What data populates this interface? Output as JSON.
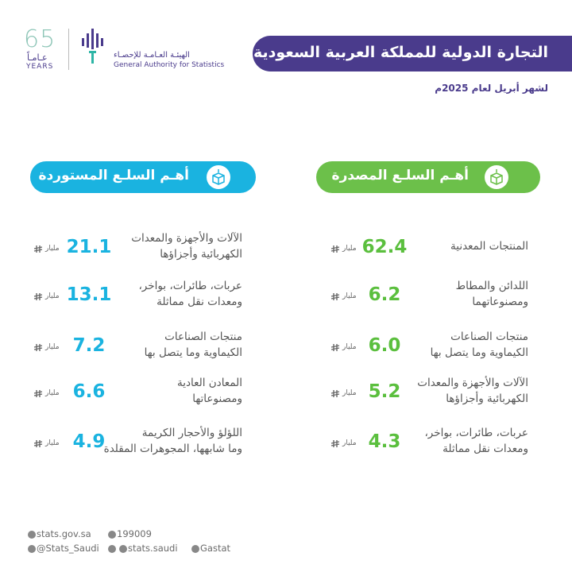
{
  "header": {
    "anniversary": {
      "number": 65,
      "arabic": "عـامـاً",
      "english": "YEARS"
    },
    "org_arabic": "الهيئـة العـامـة للإحصـاء",
    "org_english": "General Authority for Statistics",
    "title": "التجارة الدولية للمملكة العربية السعودية",
    "subtitle": "لشهر أبريل لعام 2025م"
  },
  "unit": "مليار",
  "exports": {
    "heading": "أهـم السلـع المصدرة",
    "items": [
      {
        "name": "المنتجات المعدنية",
        "value": 62.4
      },
      {
        "name": "اللدائن والمطاط\nومصنوعاتهما",
        "value": 6.2
      },
      {
        "name": "منتجات الصناعات\nالكيماوية وما يتصل بها",
        "value": {
          "value": 6,
          "label": "6.0"
        }
      },
      {
        "name": "الآلات والأجهزة والمعدات\nالكهربائية وأجزاؤها",
        "value": 5.2
      },
      {
        "name": "عربات، طائرات، بواخر،\nومعدات نقل مماثلة",
        "value": 4.3
      }
    ]
  },
  "imports": {
    "heading": "أهـم السلـع المستوردة",
    "items": [
      {
        "name": "الآلات والأجهزة والمعدات\nالكهربائية وأجزاؤها",
        "value": 21.1
      },
      {
        "name": "عربات، طائرات، بواخر،\nومعدات نقل مماثلة",
        "value": 13.1
      },
      {
        "name": "منتجات الصناعات\nالكيماوية وما يتصل بها",
        "value": 7.2
      },
      {
        "name": "المعادن العادية\nومصنوعاتها",
        "value": 6.6
      },
      {
        "name": "اللؤلؤ والأحجار الكريمة\nوما شابهها، المجوهرات المقلدة",
        "value": 4.9
      }
    ]
  },
  "footer": {
    "website": "stats.gov.sa",
    "phone": 199009,
    "twitter": "@Stats_Saudi",
    "instagram": "stats.saudi",
    "linkedin": "Gastat"
  }
}
